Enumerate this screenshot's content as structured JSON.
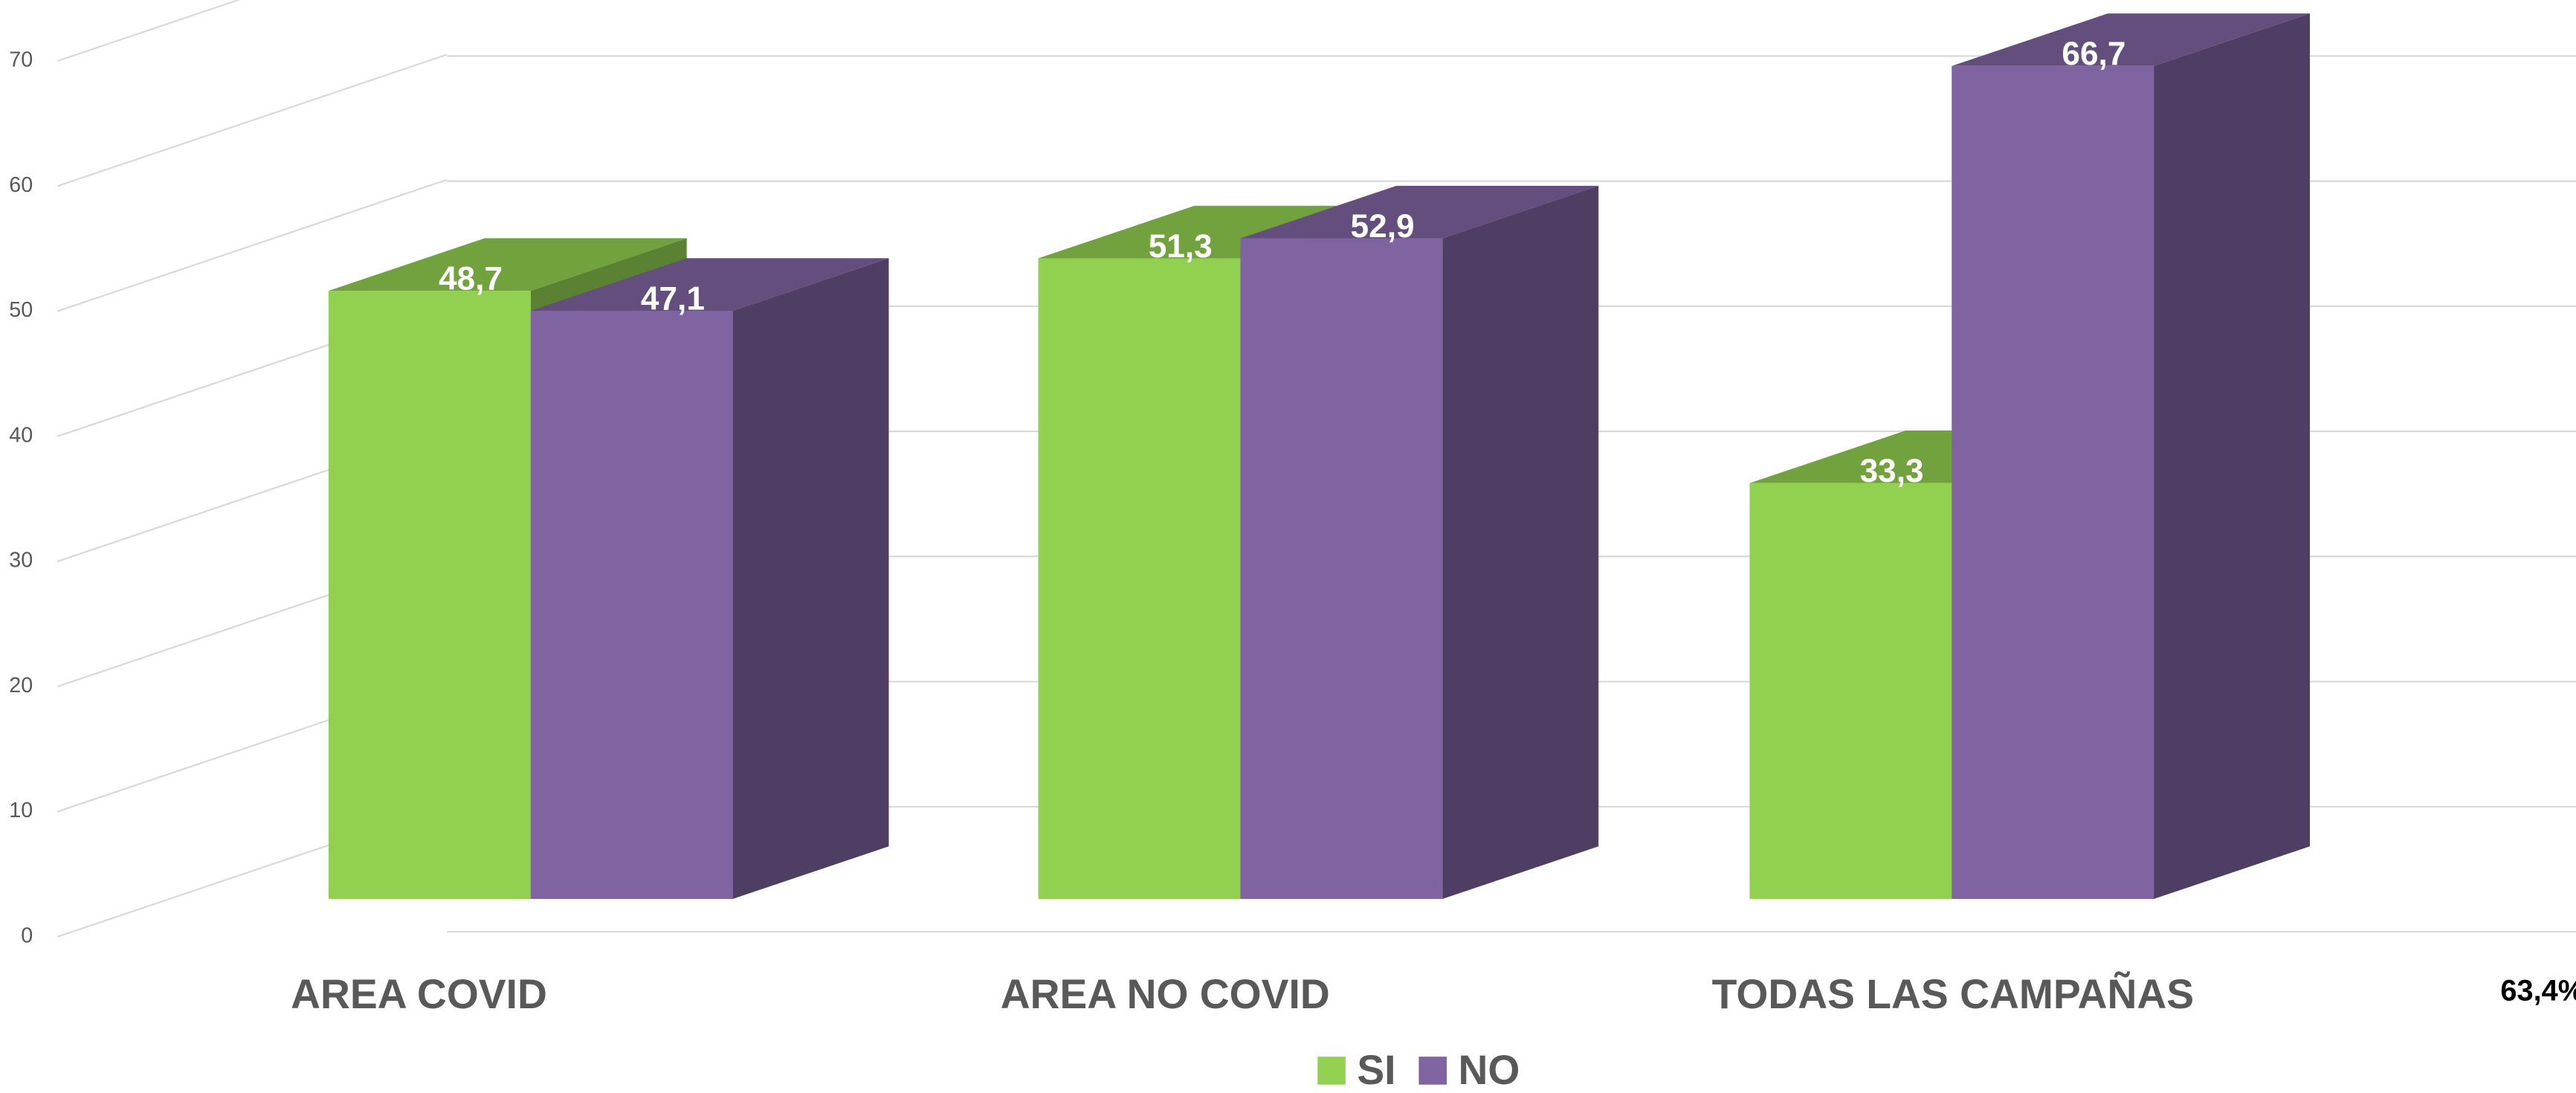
{
  "chart_data": {
    "type": "bar3d",
    "categories": [
      "AREA COVID",
      "AREA NO COVID",
      "TODAS LAS CAMPAÑAS"
    ],
    "series": [
      {
        "name": "SI",
        "color": "#92d050",
        "values": [
          48.7,
          51.3,
          33.3
        ],
        "value_labels": [
          "48,7",
          "51,3",
          "33,3"
        ]
      },
      {
        "name": "NO",
        "color": "#8064a2",
        "values": [
          47.1,
          52.9,
          66.7
        ],
        "value_labels": [
          "47,1",
          "52,9",
          "66,7"
        ]
      }
    ],
    "ylim": [
      0,
      70
    ],
    "yticks": [
      0,
      10,
      20,
      30,
      40,
      50,
      60,
      70
    ],
    "grid": true,
    "legend": "bottom",
    "annotations": [
      "63,4%"
    ]
  }
}
